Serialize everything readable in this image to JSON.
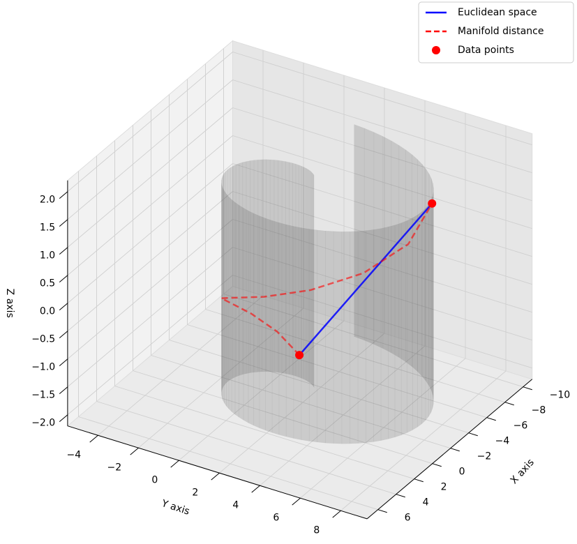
{
  "chart_data": {
    "type": "line3d",
    "xlabel": "X axis",
    "ylabel": "Y axis",
    "zlabel": "Z axis",
    "xlim": [
      -11,
      7.2
    ],
    "ylim": [
      -5.5,
      9.3
    ],
    "zlim": [
      -2.2,
      2.2
    ],
    "xticks": [
      {
        "value": -10,
        "label": "−10"
      },
      {
        "value": -8,
        "label": "−8"
      },
      {
        "value": -6,
        "label": "−6"
      },
      {
        "value": -4,
        "label": "−4"
      },
      {
        "value": -2,
        "label": "−2"
      },
      0,
      2,
      4,
      6
    ],
    "yticks": [
      {
        "value": -4,
        "label": "−4"
      },
      {
        "value": -2,
        "label": "−2"
      },
      0,
      2,
      4,
      6,
      8
    ],
    "zticks": [
      {
        "value": -2,
        "label": "−2.0"
      },
      {
        "value": -1.5,
        "label": "−1.5"
      },
      {
        "value": -1,
        "label": "−1.0"
      },
      {
        "value": -0.5,
        "label": "−0.5"
      },
      {
        "value": 0,
        "label": "0.0"
      },
      {
        "value": 0.5,
        "label": "0.5"
      },
      {
        "value": 1,
        "label": "1.0"
      },
      {
        "value": 1.5,
        "label": "1.5"
      },
      {
        "value": 2,
        "label": "2.0"
      }
    ],
    "grid": true,
    "legend": "upper right",
    "series": [
      {
        "name": "Euclidean space",
        "color": "#0000ff",
        "style": "solid",
        "x": [
          -2.69,
          -3.51
        ],
        "y": [
          1.52,
          7.71
        ],
        "z": [
          -1.5,
          1.8
        ]
      },
      {
        "name": "Manifold distance",
        "color": "#ff0000",
        "style": "dashed",
        "x": [
          -2.69,
          -2.52,
          -1.71,
          -0.37,
          1.22,
          2.61,
          3.34,
          3.07,
          1.66,
          -0.69,
          -3.51
        ],
        "y": [
          1.52,
          0.49,
          -0.43,
          -0.88,
          -0.58,
          0.59,
          2.47,
          4.66,
          6.63,
          7.8,
          7.71
        ],
        "z": [
          -1.5,
          -1.17,
          -0.84,
          -0.51,
          -0.18,
          0.15,
          0.48,
          0.81,
          1.14,
          1.47,
          1.8
        ]
      },
      {
        "name": "Data points",
        "color": "#ff0000",
        "style": "markers",
        "x": [
          -2.69,
          -3.51
        ],
        "y": [
          1.52,
          7.71
        ],
        "z": [
          -1.5,
          1.8
        ]
      }
    ]
  }
}
